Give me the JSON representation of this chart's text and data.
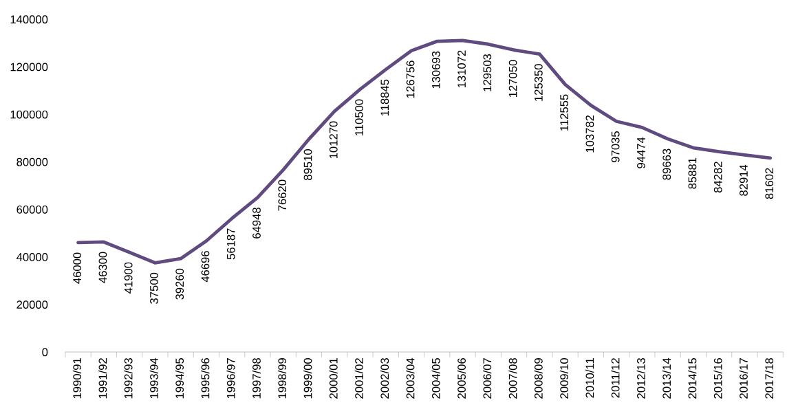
{
  "chart_data": {
    "type": "line",
    "categories": [
      "1990/91",
      "1991/92",
      "1992/93",
      "1993/94",
      "1994/95",
      "1995/96",
      "1996/97",
      "1997/98",
      "1998/99",
      "1999/00",
      "2000/01",
      "2001/02",
      "2002/03",
      "2003/04",
      "2004/05",
      "2005/06",
      "2006/07",
      "2007/08",
      "2008/09",
      "2009/10",
      "2010/11",
      "2011/12",
      "2012/13",
      "2013/14",
      "2014/15",
      "2015/16",
      "2016/17",
      "2017/18"
    ],
    "series": [
      {
        "color": "#5f4b80",
        "values": [
          46000,
          46300,
          41900,
          37500,
          39260,
          46696,
          56187,
          64948,
          76620,
          89510,
          101270,
          110500,
          118845,
          126756,
          130693,
          131072,
          129503,
          127050,
          125350,
          112555,
          103782,
          97035,
          94474,
          89663,
          85881,
          84282,
          82914,
          81602
        ]
      }
    ],
    "ylim": [
      0,
      140000
    ],
    "yticks": [
      0,
      20000,
      40000,
      60000,
      80000,
      100000,
      120000,
      140000
    ],
    "grid": false,
    "legend": false,
    "marker": "none",
    "line_style": "solid",
    "data_labels": true
  }
}
